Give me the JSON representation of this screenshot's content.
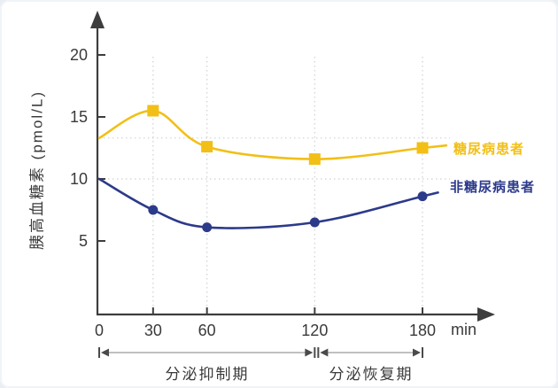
{
  "colors": {
    "diabetic_yellow": "#F2BF16",
    "nondiabetic_blue": "#2C3A8A",
    "axis": "#3d3d3d",
    "tick_text": "#3a3a3a",
    "grid_dotted": "#cdd0d4",
    "phase_arrow_line": "#9a9a9a",
    "phase_arrow_ends": "#4a4a4a",
    "background": "#ffffff"
  },
  "chart_data": {
    "type": "line",
    "title": "",
    "xlabel": "min",
    "ylabel": "胰高血糖素 (pmol/L)",
    "x_ticks": [
      0,
      30,
      60,
      120,
      180
    ],
    "y_ticks": [
      5,
      10,
      15,
      20
    ],
    "xlim": [
      0,
      200
    ],
    "ylim": [
      0,
      22
    ],
    "grid": "dotted vertical gridlines at x=30,60,120,180; dotted horizontal reference lines at each series' starting value",
    "legend_position": "right of line ends",
    "series": [
      {
        "name": "糖尿病患者",
        "color": "#F2BF16",
        "marker": "square",
        "x": [
          0,
          30,
          60,
          120,
          180
        ],
        "values": [
          13.3,
          15.5,
          12.6,
          11.6,
          12.5
        ],
        "marker_at": [
          30,
          60,
          120,
          180
        ]
      },
      {
        "name": "非糖尿病患者",
        "color": "#2C3A8A",
        "marker": "circle",
        "x": [
          0,
          30,
          60,
          120,
          180
        ],
        "values": [
          10,
          7.5,
          6.1,
          6.5,
          8.6
        ],
        "marker_at": [
          30,
          60,
          120,
          180
        ]
      }
    ],
    "reference_lines": [
      13.3,
      10
    ]
  },
  "annotations": {
    "phases": [
      {
        "label": "分泌抑制期",
        "from_min": 0,
        "to_min": 120
      },
      {
        "label": "分泌恢复期",
        "from_min": 120,
        "to_min": 180
      }
    ]
  }
}
